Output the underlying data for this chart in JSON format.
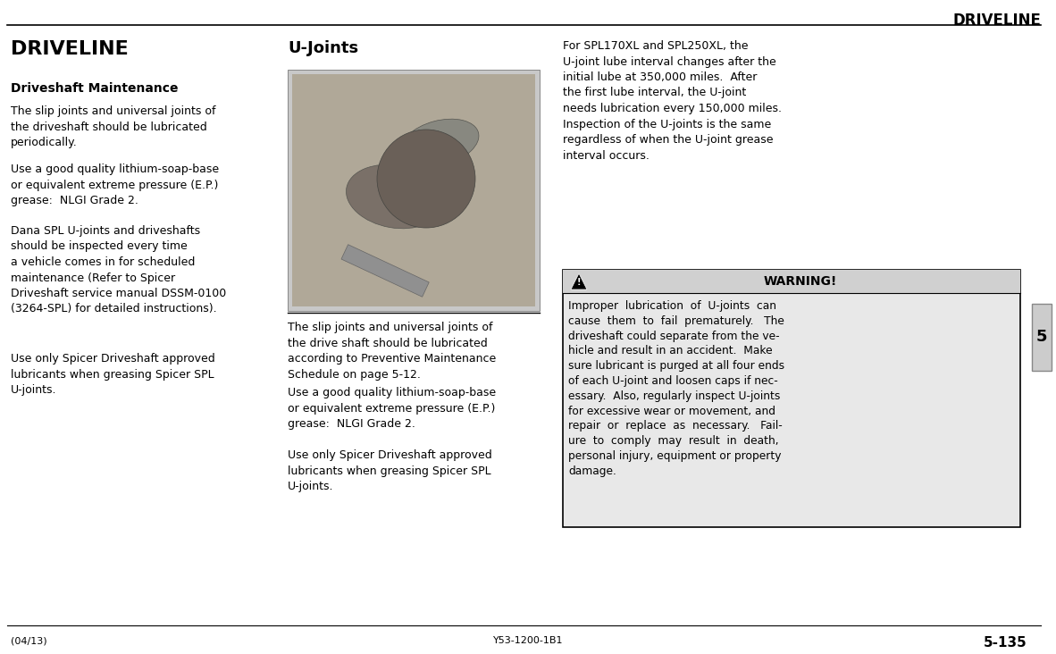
{
  "bg_color": "#ffffff",
  "header_title": "DRIVELINE",
  "tab_text": "5",
  "footer_left": "(04/13)",
  "footer_center": "Y53-1200-1B1",
  "footer_right": "5-135",
  "col1_title": "DRIVELINE",
  "col1_subtitle": "Driveshaft Maintenance",
  "col1_para1": "The slip joints and universal joints of\nthe driveshaft should be lubricated\nperiodically.",
  "col1_para2": "Use a good quality lithium-soap-base\nor equivalent extreme pressure (E.P.)\ngrease:  NLGI Grade 2.",
  "col1_para3": "Dana SPL U-joints and driveshafts\nshould be inspected every time\na vehicle comes in for scheduled\nmaintenance (Refer to Spicer\nDriveshaft service manual DSSM-0100\n(3264-SPL) for detailed instructions).",
  "col1_para4": "Use only Spicer Driveshaft approved\nlubricants when greasing Spicer SPL\nU-joints.",
  "col2_title": "U-Joints",
  "col2_para1": "The slip joints and universal joints of\nthe drive shaft should be lubricated\naccording to Preventive Maintenance\nSchedule on page 5-12.",
  "col2_para2": "Use a good quality lithium-soap-base\nor equivalent extreme pressure (E.P.)\ngrease:  NLGI Grade 2.",
  "col2_para3": "Use only Spicer Driveshaft approved\nlubricants when greasing Spicer SPL\nU-joints.",
  "col3_para1": "For SPL170XL and SPL250XL, the\nU-joint lube interval changes after the\ninitial lube at 350,000 miles.  After\nthe first lube interval, the U-joint\nneeds lubrication every 150,000 miles.\nInspection of the U-joints is the same\nregardless of when the U-joint grease\ninterval occurs.",
  "warning_title": "WARNING!",
  "warning_text": "Improper  lubrication  of  U-joints  can\ncause  them  to  fail  prematurely.   The\ndriveshaft could separate from the ve-\nhicle and result in an accident.  Make\nsure lubricant is purged at all four ends\nof each U-joint and loosen caps if nec-\nessary.  Also, regularly inspect U-joints\nfor excessive wear or movement, and\nrepair  or  replace  as  necessary.   Fail-\nure  to  comply  may  result  in  death,\npersonal injury, equipment or property\ndamage.",
  "warning_box_color": "#e8e8e8",
  "warning_border_color": "#000000",
  "image_color_outer": "#c8c8c8",
  "image_color_inner": "#b0a898"
}
